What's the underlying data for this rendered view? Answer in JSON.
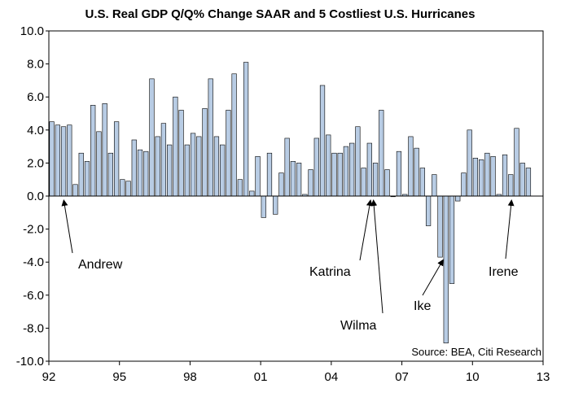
{
  "chart_data": {
    "type": "bar",
    "title": "U.S. Real GDP Q/Q% Change SAAR and 5 Costliest U.S. Hurricanes",
    "source": "Source: BEA, Citi Research",
    "xlabel": "",
    "ylabel": "",
    "ylim": [
      -10,
      10
    ],
    "yticks": [
      "10.0",
      "8.0",
      "6.0",
      "4.0",
      "2.0",
      "0.0",
      "-2.0",
      "-4.0",
      "-6.0",
      "-8.0",
      "-10.0"
    ],
    "xticks": [
      "92",
      "95",
      "98",
      "01",
      "04",
      "07",
      "10",
      "13"
    ],
    "x_start_year": 1992,
    "bar_color": "#b8cce4",
    "bar_edge_color": "#000000",
    "values": [
      4.5,
      4.3,
      4.2,
      4.3,
      0.7,
      2.6,
      2.1,
      5.5,
      3.9,
      5.6,
      2.6,
      4.5,
      1.0,
      0.9,
      3.4,
      2.8,
      2.7,
      7.1,
      3.6,
      4.4,
      3.1,
      6.0,
      5.2,
      3.1,
      3.8,
      3.6,
      5.3,
      7.1,
      3.6,
      3.1,
      5.2,
      7.4,
      1.0,
      8.1,
      0.3,
      2.4,
      -1.3,
      2.6,
      -1.1,
      1.4,
      3.5,
      2.1,
      2.0,
      0.1,
      1.6,
      3.5,
      6.7,
      3.7,
      2.6,
      2.6,
      3.0,
      3.2,
      4.2,
      1.7,
      3.2,
      2.0,
      5.2,
      1.6,
      0.0,
      2.7,
      0.1,
      3.6,
      2.9,
      1.7,
      -1.8,
      1.3,
      -3.7,
      -8.9,
      -5.3,
      -0.3,
      1.4,
      4.0,
      2.3,
      2.2,
      2.6,
      2.4,
      0.1,
      2.5,
      1.3,
      4.1,
      2.0,
      1.7
    ],
    "annotations": [
      {
        "label": "Andrew",
        "year": 1992.65
      },
      {
        "label": "Katrina",
        "year": 2005.65
      },
      {
        "label": "Wilma",
        "year": 2005.8
      },
      {
        "label": "Ike",
        "year": 2008.7
      },
      {
        "label": "Irene",
        "year": 2011.65
      }
    ]
  }
}
